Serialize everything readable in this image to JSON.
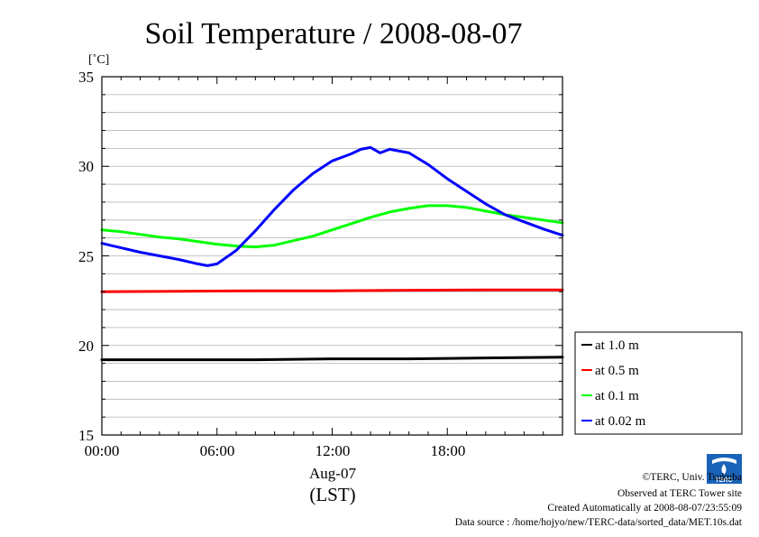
{
  "chart_data": {
    "type": "line",
    "title": "Soil Temperature / 2008-08-07",
    "ylabel": "[˚C]",
    "xlabel_date": "Aug-07",
    "xlabel_unit": "(LST)",
    "ylim": [
      15,
      35
    ],
    "yticks": [
      "35",
      "30",
      "25",
      "20",
      "15"
    ],
    "xlim": [
      0,
      24
    ],
    "xticks": [
      "00:00",
      "06:00",
      "12:00",
      "18:00"
    ],
    "grid": true,
    "legend_position": "bottom-right, outside plot",
    "series": [
      {
        "name": "at 1.0 m",
        "color": "#000000",
        "x": [
          0,
          4,
          8,
          12,
          16,
          20,
          24
        ],
        "y": [
          19.2,
          19.2,
          19.2,
          19.25,
          19.25,
          19.3,
          19.35
        ]
      },
      {
        "name": "at 0.5 m",
        "color": "#ff0000",
        "x": [
          0,
          4,
          8,
          12,
          16,
          20,
          24
        ],
        "y": [
          23.0,
          23.02,
          23.05,
          23.05,
          23.08,
          23.1,
          23.1
        ]
      },
      {
        "name": "at 0.1 m",
        "color": "#00ff00",
        "x": [
          0,
          1,
          2,
          3,
          4,
          5,
          6,
          7,
          8,
          9,
          10,
          11,
          12,
          13,
          14,
          15,
          16,
          17,
          18,
          19,
          20,
          21,
          22,
          23,
          24
        ],
        "y": [
          26.45,
          26.35,
          26.2,
          26.05,
          25.95,
          25.8,
          25.65,
          25.55,
          25.5,
          25.6,
          25.85,
          26.1,
          26.45,
          26.8,
          27.15,
          27.45,
          27.65,
          27.8,
          27.8,
          27.7,
          27.5,
          27.3,
          27.15,
          27.0,
          26.85
        ]
      },
      {
        "name": "at 0.02 m",
        "color": "#0000ff",
        "x": [
          0,
          1,
          2,
          3,
          4,
          5,
          5.5,
          6,
          7,
          8,
          9,
          10,
          11,
          12,
          13,
          13.5,
          14,
          14.5,
          15,
          16,
          17,
          18,
          19,
          20,
          21,
          22,
          23,
          24
        ],
        "y": [
          25.7,
          25.45,
          25.2,
          25.0,
          24.8,
          24.55,
          24.45,
          24.55,
          25.3,
          26.4,
          27.6,
          28.7,
          29.6,
          30.3,
          30.7,
          30.95,
          31.05,
          30.75,
          30.95,
          30.75,
          30.1,
          29.3,
          28.6,
          27.9,
          27.3,
          26.9,
          26.5,
          26.15
        ]
      }
    ]
  },
  "footer": {
    "credit": "©TERC, Univ. Tsukuba",
    "observed": "Observed at TERC Tower site",
    "created": "Created Automatically at 2008-08-07/23:55:09",
    "source": "Data source : /home/hojyo/new/TERC-data/sorted_data/MET.10s.dat"
  },
  "logo_text": "TERC"
}
